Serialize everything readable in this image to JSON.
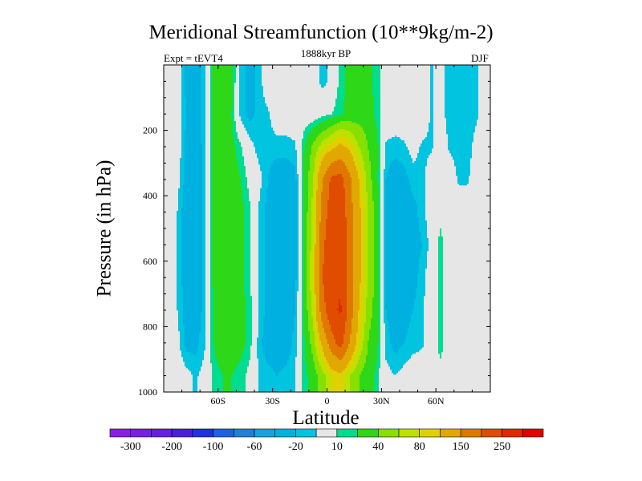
{
  "chart_data": {
    "type": "heatmap",
    "title": "Meridional Streamfunction (10**9kg/m-2)",
    "subtitle_left": "Expt = tEVT4",
    "subtitle_center": "1888kyr BP",
    "subtitle_right": "DJF",
    "xlabel": "Latitude",
    "ylabel": "Pressure (in hPa)",
    "xlim": [
      -90,
      90
    ],
    "ylim": [
      1000,
      0
    ],
    "x_ticks": [
      {
        "value": -60,
        "label": "60S"
      },
      {
        "value": -30,
        "label": "30S"
      },
      {
        "value": 0,
        "label": "0"
      },
      {
        "value": 30,
        "label": "30N"
      },
      {
        "value": 60,
        "label": "60N"
      }
    ],
    "y_ticks": [
      {
        "value": 200,
        "label": "200"
      },
      {
        "value": 400,
        "label": "400"
      },
      {
        "value": 600,
        "label": "600"
      },
      {
        "value": 800,
        "label": "800"
      },
      {
        "value": 1000,
        "label": "1000"
      }
    ],
    "lat": [
      -87.5,
      -82.5,
      -77.5,
      -72.5,
      -67.5,
      -62.5,
      -57.5,
      -52.5,
      -47.5,
      -42.5,
      -37.5,
      -32.5,
      -27.5,
      -22.5,
      -17.5,
      -12.5,
      -7.5,
      -2.5,
      2.5,
      7.5,
      12.5,
      17.5,
      22.5,
      27.5,
      32.5,
      37.5,
      42.5,
      47.5,
      52.5,
      57.5,
      62.5,
      67.5,
      72.5,
      77.5,
      82.5,
      87.5
    ],
    "pressure": [
      50,
      150,
      250,
      350,
      450,
      550,
      650,
      750,
      850,
      950
    ],
    "values": [
      [
        0,
        0,
        -25,
        -25,
        -15,
        25,
        30,
        25,
        -15,
        -25,
        -15,
        0,
        0,
        0,
        0,
        0,
        0,
        -15,
        -5,
        15,
        25,
        30,
        25,
        15,
        0,
        0,
        0,
        0,
        0,
        -12,
        -5,
        -15,
        -15,
        -15,
        -12,
        0
      ],
      [
        0,
        0,
        -20,
        -25,
        -15,
        25,
        30,
        20,
        -15,
        -25,
        -15,
        -12,
        0,
        0,
        0,
        0,
        0,
        5,
        10,
        18,
        25,
        30,
        30,
        15,
        0,
        0,
        0,
        0,
        0,
        -12,
        -5,
        -15,
        -15,
        -15,
        -12,
        0
      ],
      [
        0,
        0,
        -25,
        -30,
        -15,
        25,
        30,
        25,
        12,
        -5,
        -15,
        -15,
        -15,
        -15,
        -12,
        20,
        45,
        70,
        90,
        110,
        90,
        60,
        40,
        25,
        -12,
        -15,
        -12,
        -5,
        -12,
        -12,
        0,
        -12,
        -15,
        -15,
        -5,
        0
      ],
      [
        0,
        -5,
        -25,
        -30,
        -15,
        25,
        30,
        30,
        20,
        5,
        -5,
        -20,
        -30,
        -30,
        -25,
        25,
        60,
        150,
        210,
        220,
        160,
        100,
        50,
        25,
        -20,
        -30,
        -25,
        -15,
        -15,
        0,
        0,
        0,
        -12,
        -12,
        0,
        0
      ],
      [
        0,
        -10,
        -30,
        -30,
        -15,
        25,
        30,
        30,
        25,
        12,
        -12,
        -25,
        -40,
        -30,
        -25,
        25,
        70,
        170,
        230,
        240,
        170,
        110,
        60,
        30,
        -20,
        -30,
        -30,
        -25,
        -15,
        0,
        5,
        0,
        0,
        0,
        0,
        0
      ],
      [
        0,
        -10,
        -30,
        -30,
        -15,
        25,
        30,
        30,
        25,
        12,
        -12,
        -25,
        -35,
        -30,
        -25,
        25,
        75,
        190,
        235,
        240,
        175,
        110,
        60,
        30,
        -20,
        -30,
        -30,
        -25,
        -20,
        -5,
        15,
        0,
        0,
        0,
        0,
        0
      ],
      [
        0,
        -10,
        -30,
        -30,
        -15,
        25,
        30,
        30,
        25,
        12,
        -12,
        -25,
        -30,
        -30,
        -25,
        25,
        80,
        200,
        240,
        245,
        180,
        110,
        60,
        30,
        -20,
        -30,
        -30,
        -25,
        -15,
        0,
        15,
        0,
        0,
        0,
        0,
        0
      ],
      [
        0,
        -10,
        -25,
        -30,
        -15,
        22,
        30,
        30,
        25,
        15,
        -12,
        -25,
        -30,
        -30,
        -20,
        25,
        70,
        180,
        240,
        255,
        180,
        100,
        50,
        30,
        -20,
        -30,
        -25,
        -20,
        -12,
        0,
        15,
        0,
        0,
        0,
        0,
        0
      ],
      [
        0,
        -5,
        -25,
        -25,
        -12,
        20,
        30,
        30,
        25,
        15,
        -15,
        -30,
        -30,
        -30,
        -15,
        20,
        50,
        110,
        180,
        220,
        150,
        80,
        40,
        25,
        -15,
        -25,
        -20,
        -15,
        -12,
        0,
        15,
        0,
        0,
        0,
        0,
        0
      ],
      [
        0,
        0,
        -5,
        -12,
        -5,
        15,
        20,
        20,
        15,
        5,
        -12,
        -15,
        -20,
        -15,
        -10,
        15,
        30,
        50,
        80,
        90,
        60,
        40,
        30,
        15,
        -5,
        -10,
        -5,
        0,
        0,
        0,
        5,
        0,
        0,
        0,
        0,
        0
      ]
    ],
    "levels": [
      -300,
      -250,
      -200,
      -150,
      -100,
      -80,
      -60,
      -40,
      -20,
      -10,
      10,
      20,
      40,
      60,
      80,
      100,
      150,
      200,
      250,
      300
    ],
    "level_labels": [
      "-300",
      "-200",
      "-100",
      "-60",
      "-20",
      "10",
      "40",
      "80",
      "150",
      "250"
    ],
    "colors": [
      "#8a1fe0",
      "#781fe0",
      "#661fe0",
      "#4a20d8",
      "#1e32e0",
      "#1e62e0",
      "#1e80d8",
      "#1aa0e0",
      "#00b0e0",
      "#00c4e0",
      "#e6e6e6",
      "#00dc90",
      "#2ed818",
      "#86e000",
      "#c0e000",
      "#e0d000",
      "#e0a800",
      "#e07800",
      "#e04c00",
      "#e02800",
      "#e00000"
    ],
    "background": "#e6e6e6"
  }
}
